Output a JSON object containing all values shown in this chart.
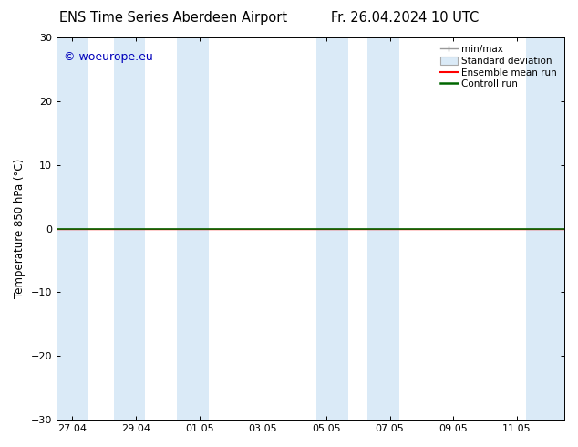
{
  "title_left": "ENS Time Series Aberdeen Airport",
  "title_right": "Fr. 26.04.2024 10 UTC",
  "ylabel": "Temperature 850 hPa (°C)",
  "ylim": [
    -30,
    30
  ],
  "yticks": [
    -30,
    -20,
    -10,
    0,
    10,
    20,
    30
  ],
  "xlim_start": 0,
  "xlim_end": 16,
  "xtick_labels": [
    "27.04",
    "29.04",
    "01.05",
    "03.05",
    "05.05",
    "07.05",
    "09.05",
    "11.05"
  ],
  "xtick_positions": [
    0.5,
    2.5,
    4.5,
    6.5,
    8.5,
    10.5,
    12.5,
    14.5
  ],
  "watermark": "© woeurope.eu",
  "watermark_color": "#0000bb",
  "bg_color": "#ffffff",
  "plot_bg_color": "#ffffff",
  "band_color": "#daeaf7",
  "band_positions": [
    [
      0,
      1.0
    ],
    [
      1.8,
      2.8
    ],
    [
      3.8,
      4.8
    ],
    [
      8.2,
      9.2
    ],
    [
      9.8,
      10.8
    ],
    [
      14.8,
      16
    ]
  ],
  "zero_line_color": "#006600",
  "ensemble_mean_color": "#ff0000",
  "control_run_color": "#006600",
  "legend_items": [
    "min/max",
    "Standard deviation",
    "Ensemble mean run",
    "Controll run"
  ],
  "title_fontsize": 10.5,
  "axis_fontsize": 8.5,
  "tick_fontsize": 8
}
